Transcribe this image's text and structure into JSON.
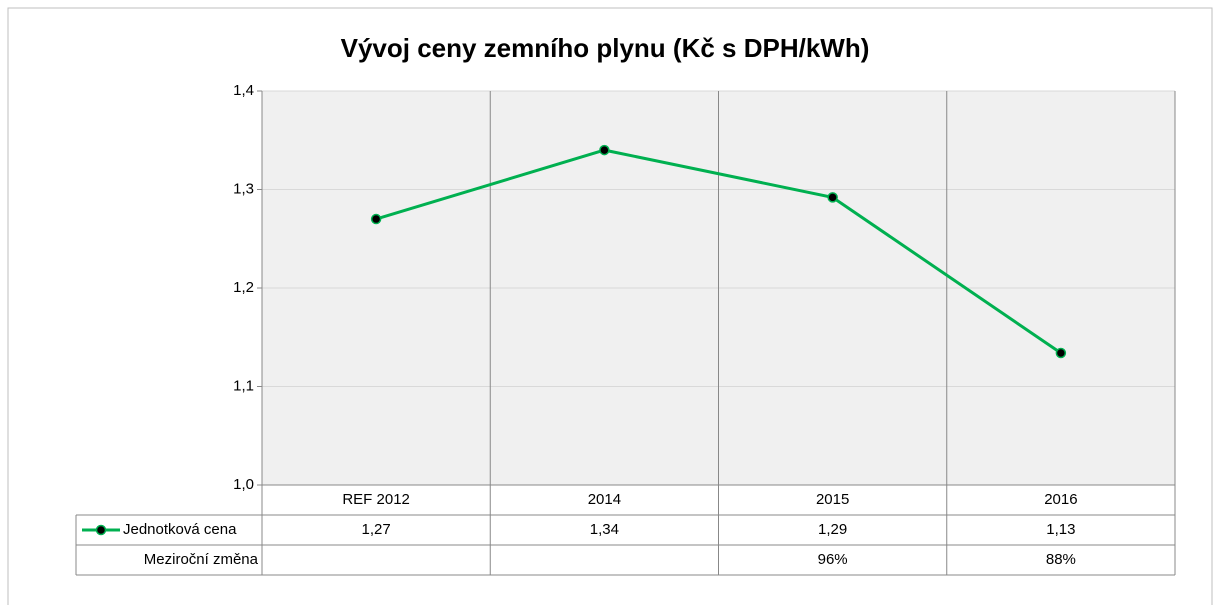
{
  "chart_data": {
    "type": "line",
    "title": "Vývoj ceny zemního plynu (Kč s DPH/kWh)",
    "categories": [
      "REF 2012",
      "2014",
      "2015",
      "2016"
    ],
    "series": [
      {
        "name": "Jednotková cena",
        "color": "#00b050",
        "values": [
          1.27,
          1.34,
          1.292,
          1.134
        ],
        "value_labels": [
          "1,27",
          "1,34",
          "1,29",
          "1,13"
        ]
      }
    ],
    "table_rows": [
      {
        "name": "Meziroční změna",
        "values": [
          null,
          null,
          96,
          88
        ],
        "value_labels": [
          null,
          null,
          "96%",
          "88%"
        ]
      }
    ],
    "ylim": [
      1.0,
      1.4
    ],
    "yticks": [
      {
        "value": 1.0,
        "label": "1,0"
      },
      {
        "value": 1.1,
        "label": "1,1"
      },
      {
        "value": 1.2,
        "label": "1,2"
      },
      {
        "value": 1.3,
        "label": "1,3"
      },
      {
        "value": 1.4,
        "label": "1,4"
      }
    ],
    "grid": true
  }
}
